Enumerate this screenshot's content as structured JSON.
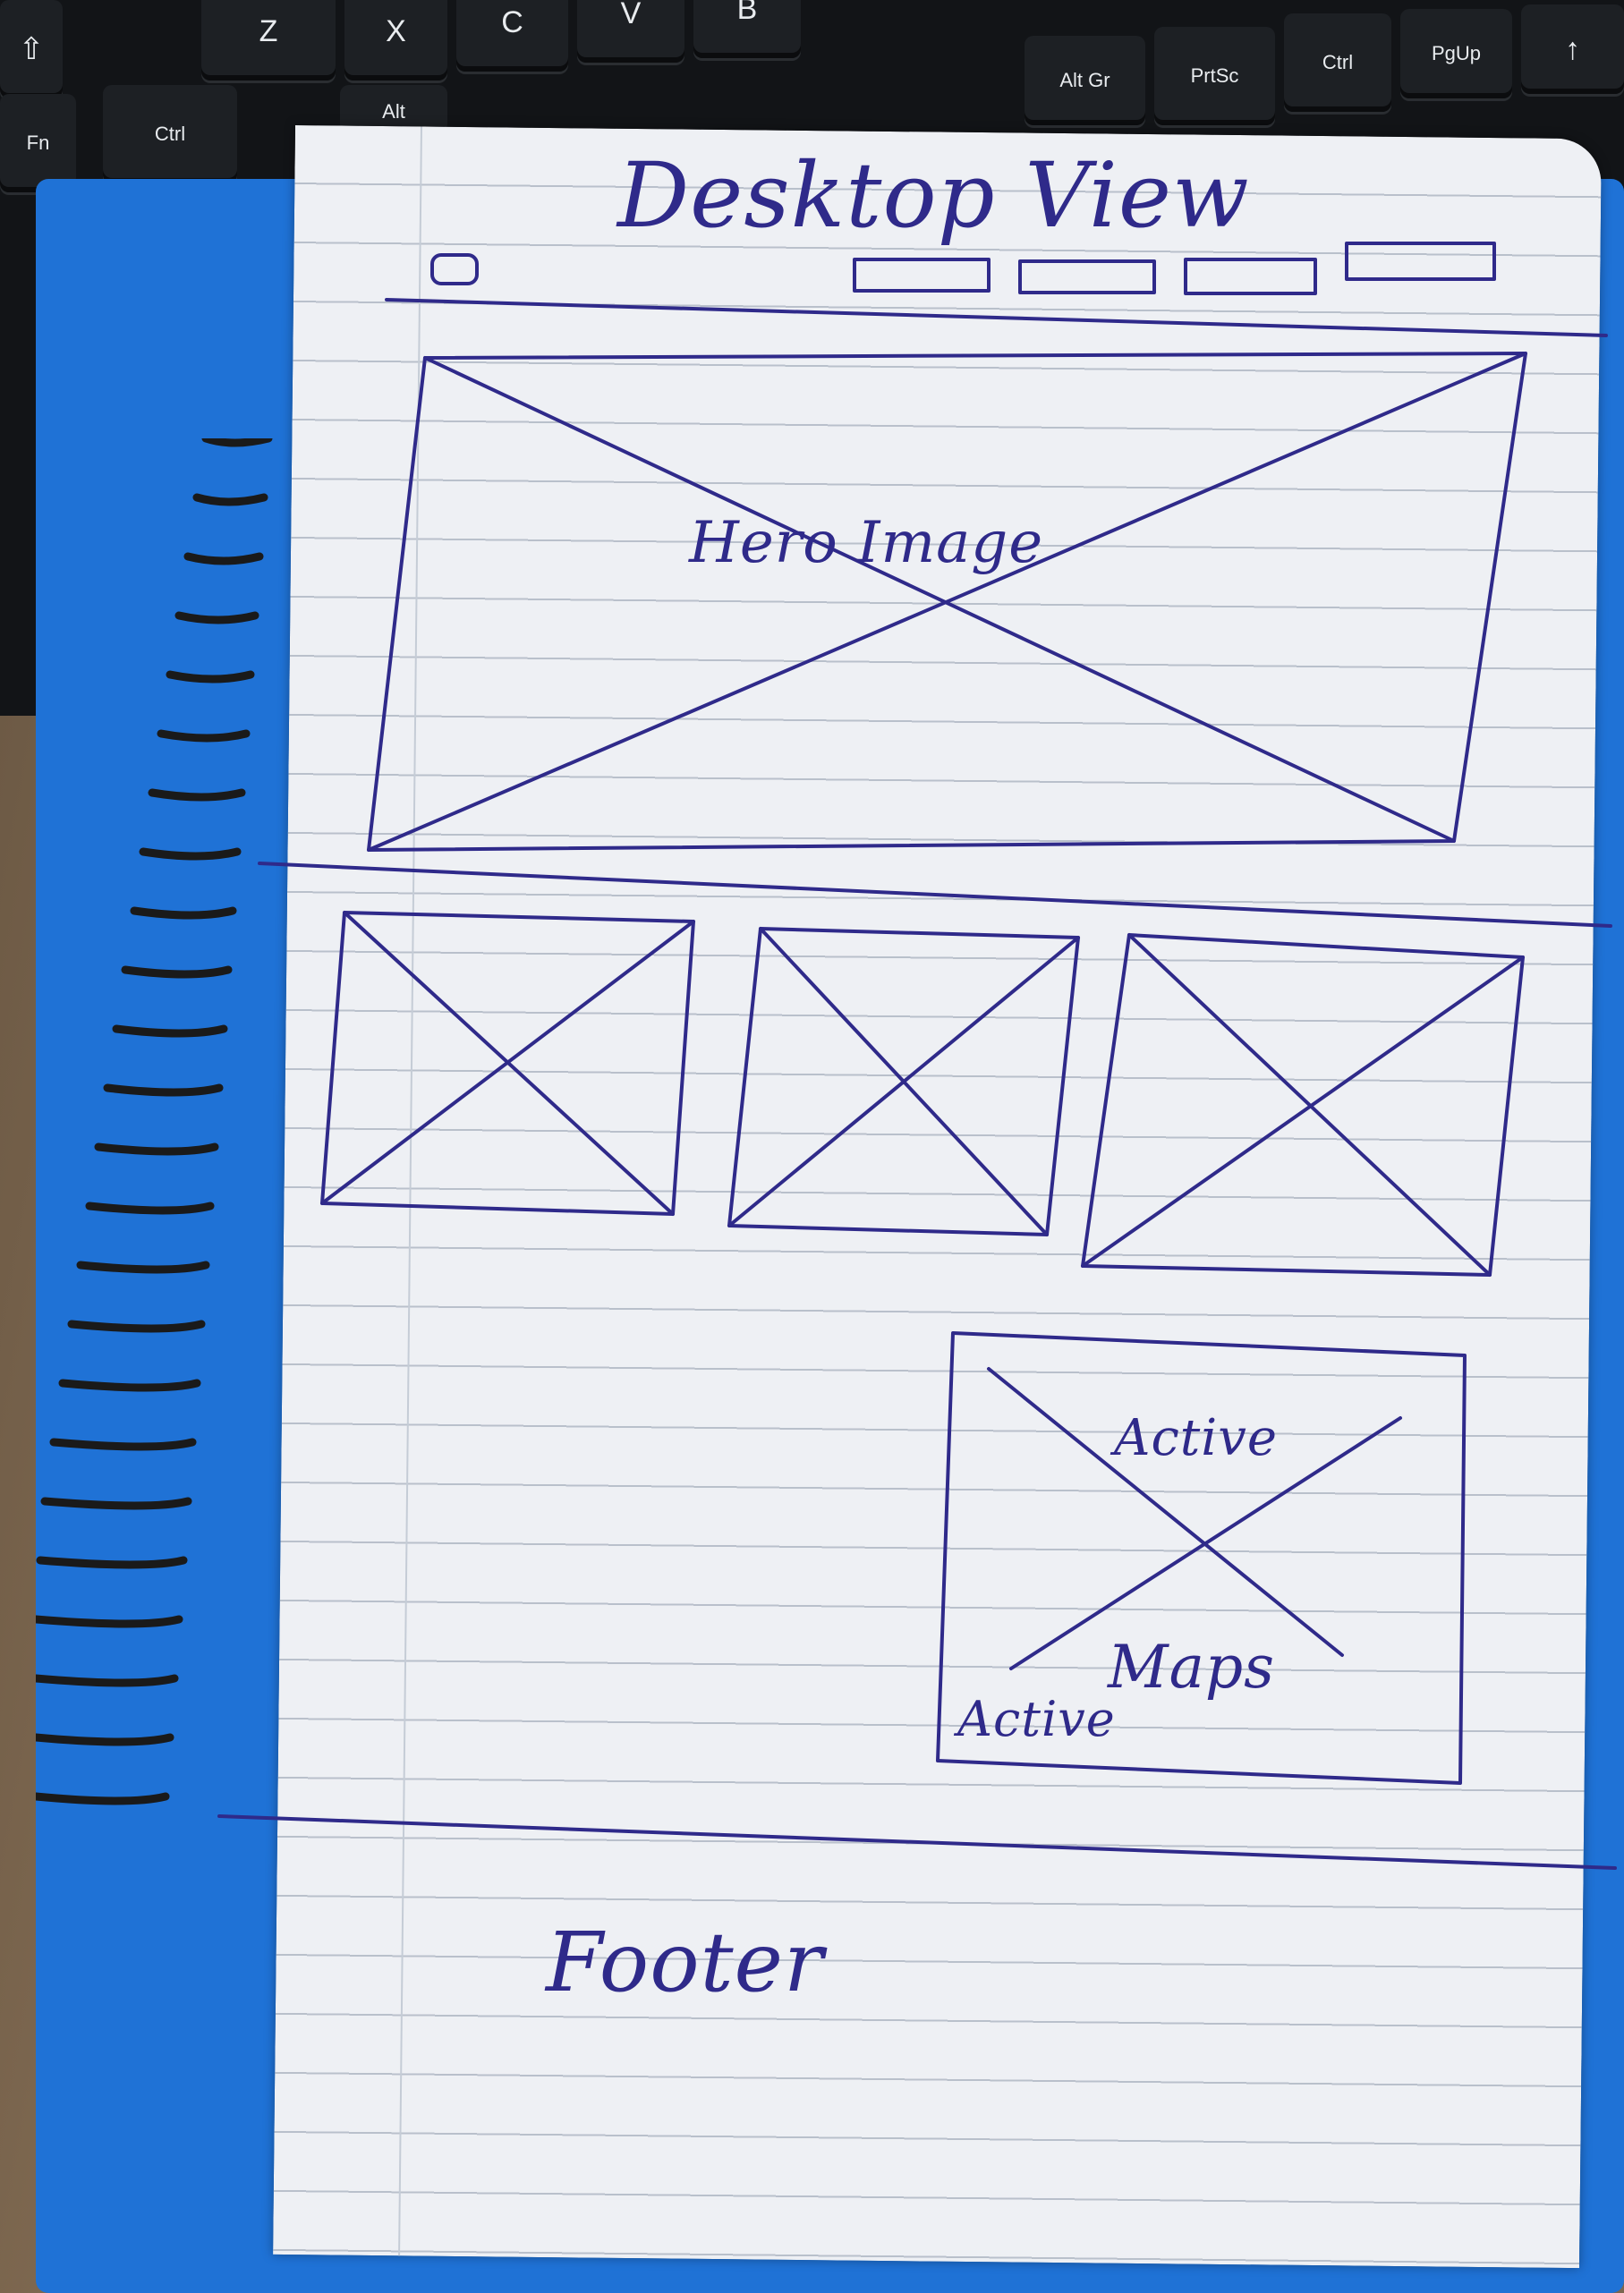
{
  "keyboard": {
    "keys": [
      {
        "id": "shift",
        "label": "⇧"
      },
      {
        "id": "z",
        "label": "Z"
      },
      {
        "id": "x",
        "label": "X"
      },
      {
        "id": "c",
        "label": "C"
      },
      {
        "id": "v",
        "label": "V"
      },
      {
        "id": "b",
        "label": "B"
      },
      {
        "id": "fn",
        "label": "Fn"
      },
      {
        "id": "ctrl-left",
        "label": "Ctrl"
      },
      {
        "id": "alt",
        "label": "Alt"
      },
      {
        "id": "altgr",
        "label": "Alt Gr"
      },
      {
        "id": "prtsc",
        "label": "PrtSc"
      },
      {
        "id": "ctrl-right",
        "label": "Ctrl"
      },
      {
        "id": "pgup",
        "label": "PgUp"
      },
      {
        "id": "arrow-up",
        "label": "↑"
      }
    ]
  },
  "sketch": {
    "title": "Desktop View",
    "hero_label": "Hero Image",
    "map_label_top": "Active",
    "map_label_bottom": "Active",
    "map_label_maps": "Maps",
    "footer_label": "Footer"
  },
  "colors": {
    "ink": "#2f2a8a",
    "paper": "#eef0f4",
    "notebook_cover": "#1f72d6"
  }
}
